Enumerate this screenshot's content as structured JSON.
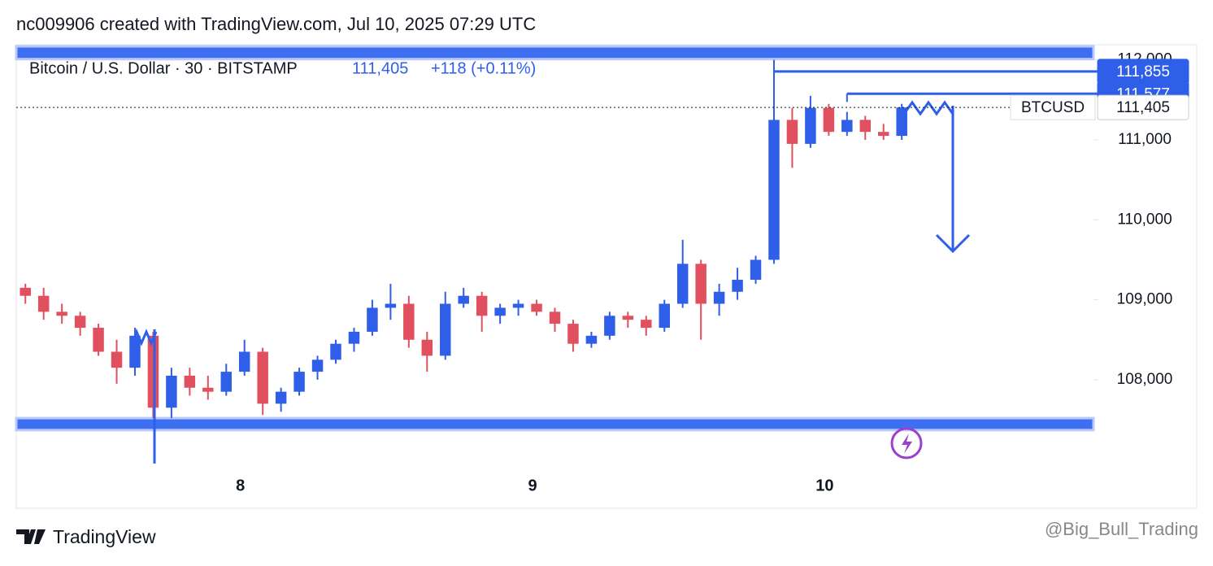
{
  "header": "nc009906 created with TradingView.com, Jul 10, 2025 07:29 UTC",
  "footer": {
    "brand": "TradingView",
    "watermark": "@Big_Bull_Trading"
  },
  "chart_data": {
    "type": "candlestick",
    "title": "Bitcoin / U.S. Dollar · 30 · BITSTAMP",
    "last_price": "111,405",
    "change": "+118 (+0.11%)",
    "symbol": "BTCUSD",
    "up_color": "#2f5ee8",
    "down_color": "#e0505e",
    "categories": [
      null,
      null,
      null,
      null,
      null,
      null,
      null,
      null,
      null,
      null,
      null,
      null,
      "8",
      null,
      null,
      null,
      null,
      null,
      null,
      null,
      null,
      null,
      null,
      null,
      null,
      null,
      null,
      null,
      "9",
      null,
      null,
      null,
      null,
      null,
      null,
      null,
      null,
      null,
      null,
      null,
      null,
      null,
      null,
      null,
      "10",
      null,
      null,
      null,
      null,
      null,
      null,
      null,
      null,
      null,
      null,
      null,
      null,
      null,
      null
    ],
    "open": [
      109150,
      109050,
      108850,
      108800,
      108650,
      108350,
      108150,
      108550,
      107650,
      108050,
      107900,
      107850,
      108100,
      108350,
      107700,
      107850,
      108100,
      108250,
      108450,
      108600,
      108900,
      108950,
      108500,
      108300,
      108950,
      109050,
      108800,
      108900,
      108950,
      108850,
      108700,
      108450,
      108550,
      108800,
      108750,
      108650,
      108950,
      109450,
      108950,
      109100,
      109250,
      109500,
      111250,
      110950,
      111400,
      111100,
      111250,
      111100,
      111050,
      null,
      null,
      null,
      null,
      null,
      null,
      null,
      null,
      null,
      null
    ],
    "high": [
      109200,
      109150,
      108950,
      108850,
      108700,
      108500,
      108650,
      108600,
      108150,
      108150,
      108050,
      108200,
      108500,
      108400,
      107900,
      108150,
      108300,
      108500,
      108650,
      109000,
      109200,
      109050,
      108600,
      109100,
      109150,
      109100,
      108950,
      109000,
      109000,
      108900,
      108750,
      108600,
      108850,
      108850,
      108800,
      109000,
      109750,
      109500,
      109200,
      109400,
      109550,
      112000,
      111400,
      111550,
      111450,
      111350,
      111300,
      111200,
      111450,
      null,
      null,
      null,
      null,
      null,
      null,
      null,
      null,
      null,
      null
    ],
    "low": [
      108950,
      108750,
      108700,
      108550,
      108300,
      107950,
      108050,
      107520,
      107520,
      107800,
      107750,
      107800,
      108050,
      107560,
      107600,
      107800,
      108000,
      108200,
      108350,
      108550,
      108750,
      108400,
      108100,
      108250,
      108900,
      108600,
      108700,
      108800,
      108800,
      108600,
      108350,
      108400,
      108500,
      108650,
      108550,
      108600,
      108900,
      108500,
      108800,
      109000,
      109200,
      109450,
      110650,
      110900,
      111050,
      111050,
      111000,
      111000,
      111000,
      null,
      null,
      null,
      null,
      null,
      null,
      null,
      null,
      null,
      null
    ],
    "close": [
      109050,
      108850,
      108800,
      108650,
      108350,
      108150,
      108550,
      107650,
      108050,
      107900,
      107850,
      108100,
      108350,
      107700,
      107850,
      108100,
      108250,
      108450,
      108600,
      108900,
      108950,
      108500,
      108300,
      108950,
      109050,
      108800,
      108900,
      108950,
      108850,
      108700,
      108450,
      108550,
      108800,
      108750,
      108650,
      108950,
      109450,
      108950,
      109100,
      109250,
      109500,
      111250,
      110950,
      111400,
      111100,
      111250,
      111100,
      111050,
      111405,
      null,
      null,
      null,
      null,
      null,
      null,
      null,
      null,
      null,
      null
    ],
    "ylim": [
      106850,
      112190
    ],
    "yticks": [
      {
        "value": 108000,
        "label": "108,000"
      },
      {
        "value": 109000,
        "label": "109,000"
      },
      {
        "value": 110000,
        "label": "110,000"
      },
      {
        "value": 111000,
        "label": "111,000"
      },
      {
        "value": 112000,
        "label": "112,000"
      }
    ],
    "zones": [
      {
        "low": 112010,
        "high": 112170,
        "color": "#3d6ff0"
      },
      {
        "low": 107370,
        "high": 107520,
        "color": "#3d6ff0"
      }
    ],
    "price_labels": [
      {
        "value": 111855,
        "label": "111,855",
        "color": "#2f5ee8"
      },
      {
        "value": 111577,
        "label": "111,577",
        "color": "#2f5ee8"
      },
      {
        "value": 111405,
        "label": "111,405",
        "color": "#ffffff"
      }
    ]
  }
}
